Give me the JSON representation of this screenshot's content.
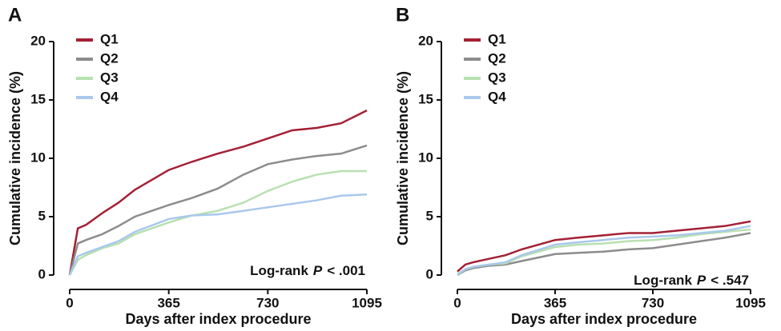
{
  "chart_data": [
    {
      "type": "line",
      "panel": "A",
      "xlabel": "Days after index procedure",
      "ylabel": "Cumulative incidence (%)",
      "annotation": [
        "Log-rank",
        "P",
        "< .001"
      ],
      "x": [
        0,
        30,
        60,
        120,
        180,
        240,
        365,
        450,
        545,
        640,
        730,
        820,
        910,
        1000,
        1095
      ],
      "series": [
        {
          "name": "Q1",
          "color": "#a32035",
          "values": [
            0,
            4.0,
            4.3,
            5.3,
            6.2,
            7.3,
            9.0,
            9.7,
            10.4,
            11.0,
            11.7,
            12.4,
            12.6,
            13.0,
            14.1
          ]
        },
        {
          "name": "Q2",
          "color": "#8c8c8c",
          "values": [
            0,
            2.7,
            3.0,
            3.5,
            4.2,
            5.0,
            6.0,
            6.6,
            7.4,
            8.6,
            9.5,
            9.9,
            10.2,
            10.4,
            11.1
          ]
        },
        {
          "name": "Q3",
          "color": "#b8e0b0",
          "values": [
            0,
            1.3,
            1.7,
            2.3,
            2.7,
            3.5,
            4.5,
            5.1,
            5.5,
            6.2,
            7.2,
            8.0,
            8.6,
            8.9,
            8.9
          ]
        },
        {
          "name": "Q4",
          "color": "#a9c8ec",
          "values": [
            0,
            1.6,
            1.9,
            2.4,
            2.9,
            3.7,
            4.8,
            5.1,
            5.2,
            5.5,
            5.8,
            6.1,
            6.4,
            6.8,
            6.9
          ]
        }
      ],
      "xlim": [
        0,
        1095
      ],
      "xticks": [
        0,
        365,
        730,
        1095
      ],
      "ylim": [
        0,
        20
      ],
      "yticks": [
        0,
        5,
        10,
        15,
        20
      ]
    },
    {
      "type": "line",
      "panel": "B",
      "xlabel": "Days after index procedure",
      "ylabel": "Cumulative incidence (%)",
      "annotation": [
        "Log-rank",
        "P",
        "< .547"
      ],
      "x": [
        0,
        30,
        60,
        120,
        180,
        240,
        365,
        450,
        545,
        640,
        730,
        820,
        910,
        1000,
        1095
      ],
      "series": [
        {
          "name": "Q1",
          "color": "#a32035",
          "values": [
            0.3,
            0.9,
            1.1,
            1.4,
            1.7,
            2.2,
            3.0,
            3.2,
            3.4,
            3.6,
            3.6,
            3.8,
            4.0,
            4.2,
            4.6
          ]
        },
        {
          "name": "Q2",
          "color": "#8c8c8c",
          "values": [
            0,
            0.4,
            0.6,
            0.8,
            0.9,
            1.2,
            1.8,
            1.9,
            2.0,
            2.2,
            2.3,
            2.6,
            2.9,
            3.2,
            3.6
          ]
        },
        {
          "name": "Q3",
          "color": "#b8e0b0",
          "values": [
            0.1,
            0.5,
            0.7,
            0.9,
            1.0,
            1.6,
            2.4,
            2.6,
            2.7,
            2.9,
            3.0,
            3.2,
            3.5,
            3.7,
            3.9
          ]
        },
        {
          "name": "Q4",
          "color": "#a9c8ec",
          "values": [
            0,
            0.5,
            0.7,
            0.9,
            1.1,
            1.7,
            2.6,
            2.8,
            3.0,
            3.2,
            3.3,
            3.4,
            3.6,
            3.8,
            4.2
          ]
        }
      ],
      "xlim": [
        0,
        1095
      ],
      "xticks": [
        0,
        365,
        730,
        1095
      ],
      "ylim": [
        0,
        20
      ],
      "yticks": [
        0,
        5,
        10,
        15,
        20
      ]
    }
  ]
}
